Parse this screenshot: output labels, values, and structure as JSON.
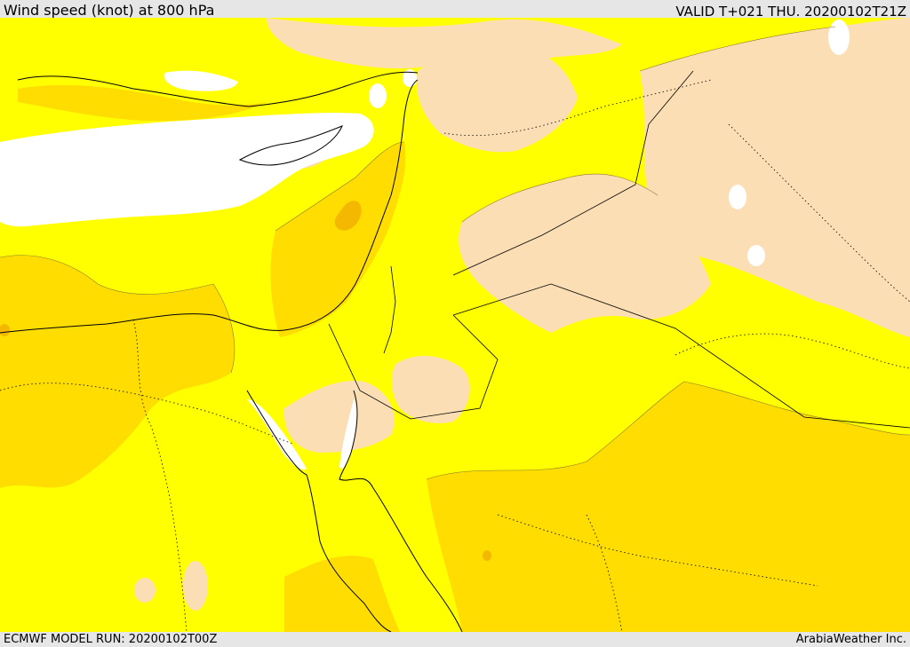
{
  "header": {
    "title": "Wind speed (knot) at 800 hPa",
    "valid": "VALID T+021 THU. 20200102T21Z"
  },
  "footer": {
    "model_run": "ECMWF MODEL RUN: 20200102T00Z",
    "credit": "ArabiaWeather Inc."
  },
  "map": {
    "colors": {
      "band_0": "#ffffff",
      "band_1": "#fbdeb3",
      "band_2": "#ffff00",
      "band_3": "#ffdd00",
      "band_4": "#f5b800"
    }
  }
}
